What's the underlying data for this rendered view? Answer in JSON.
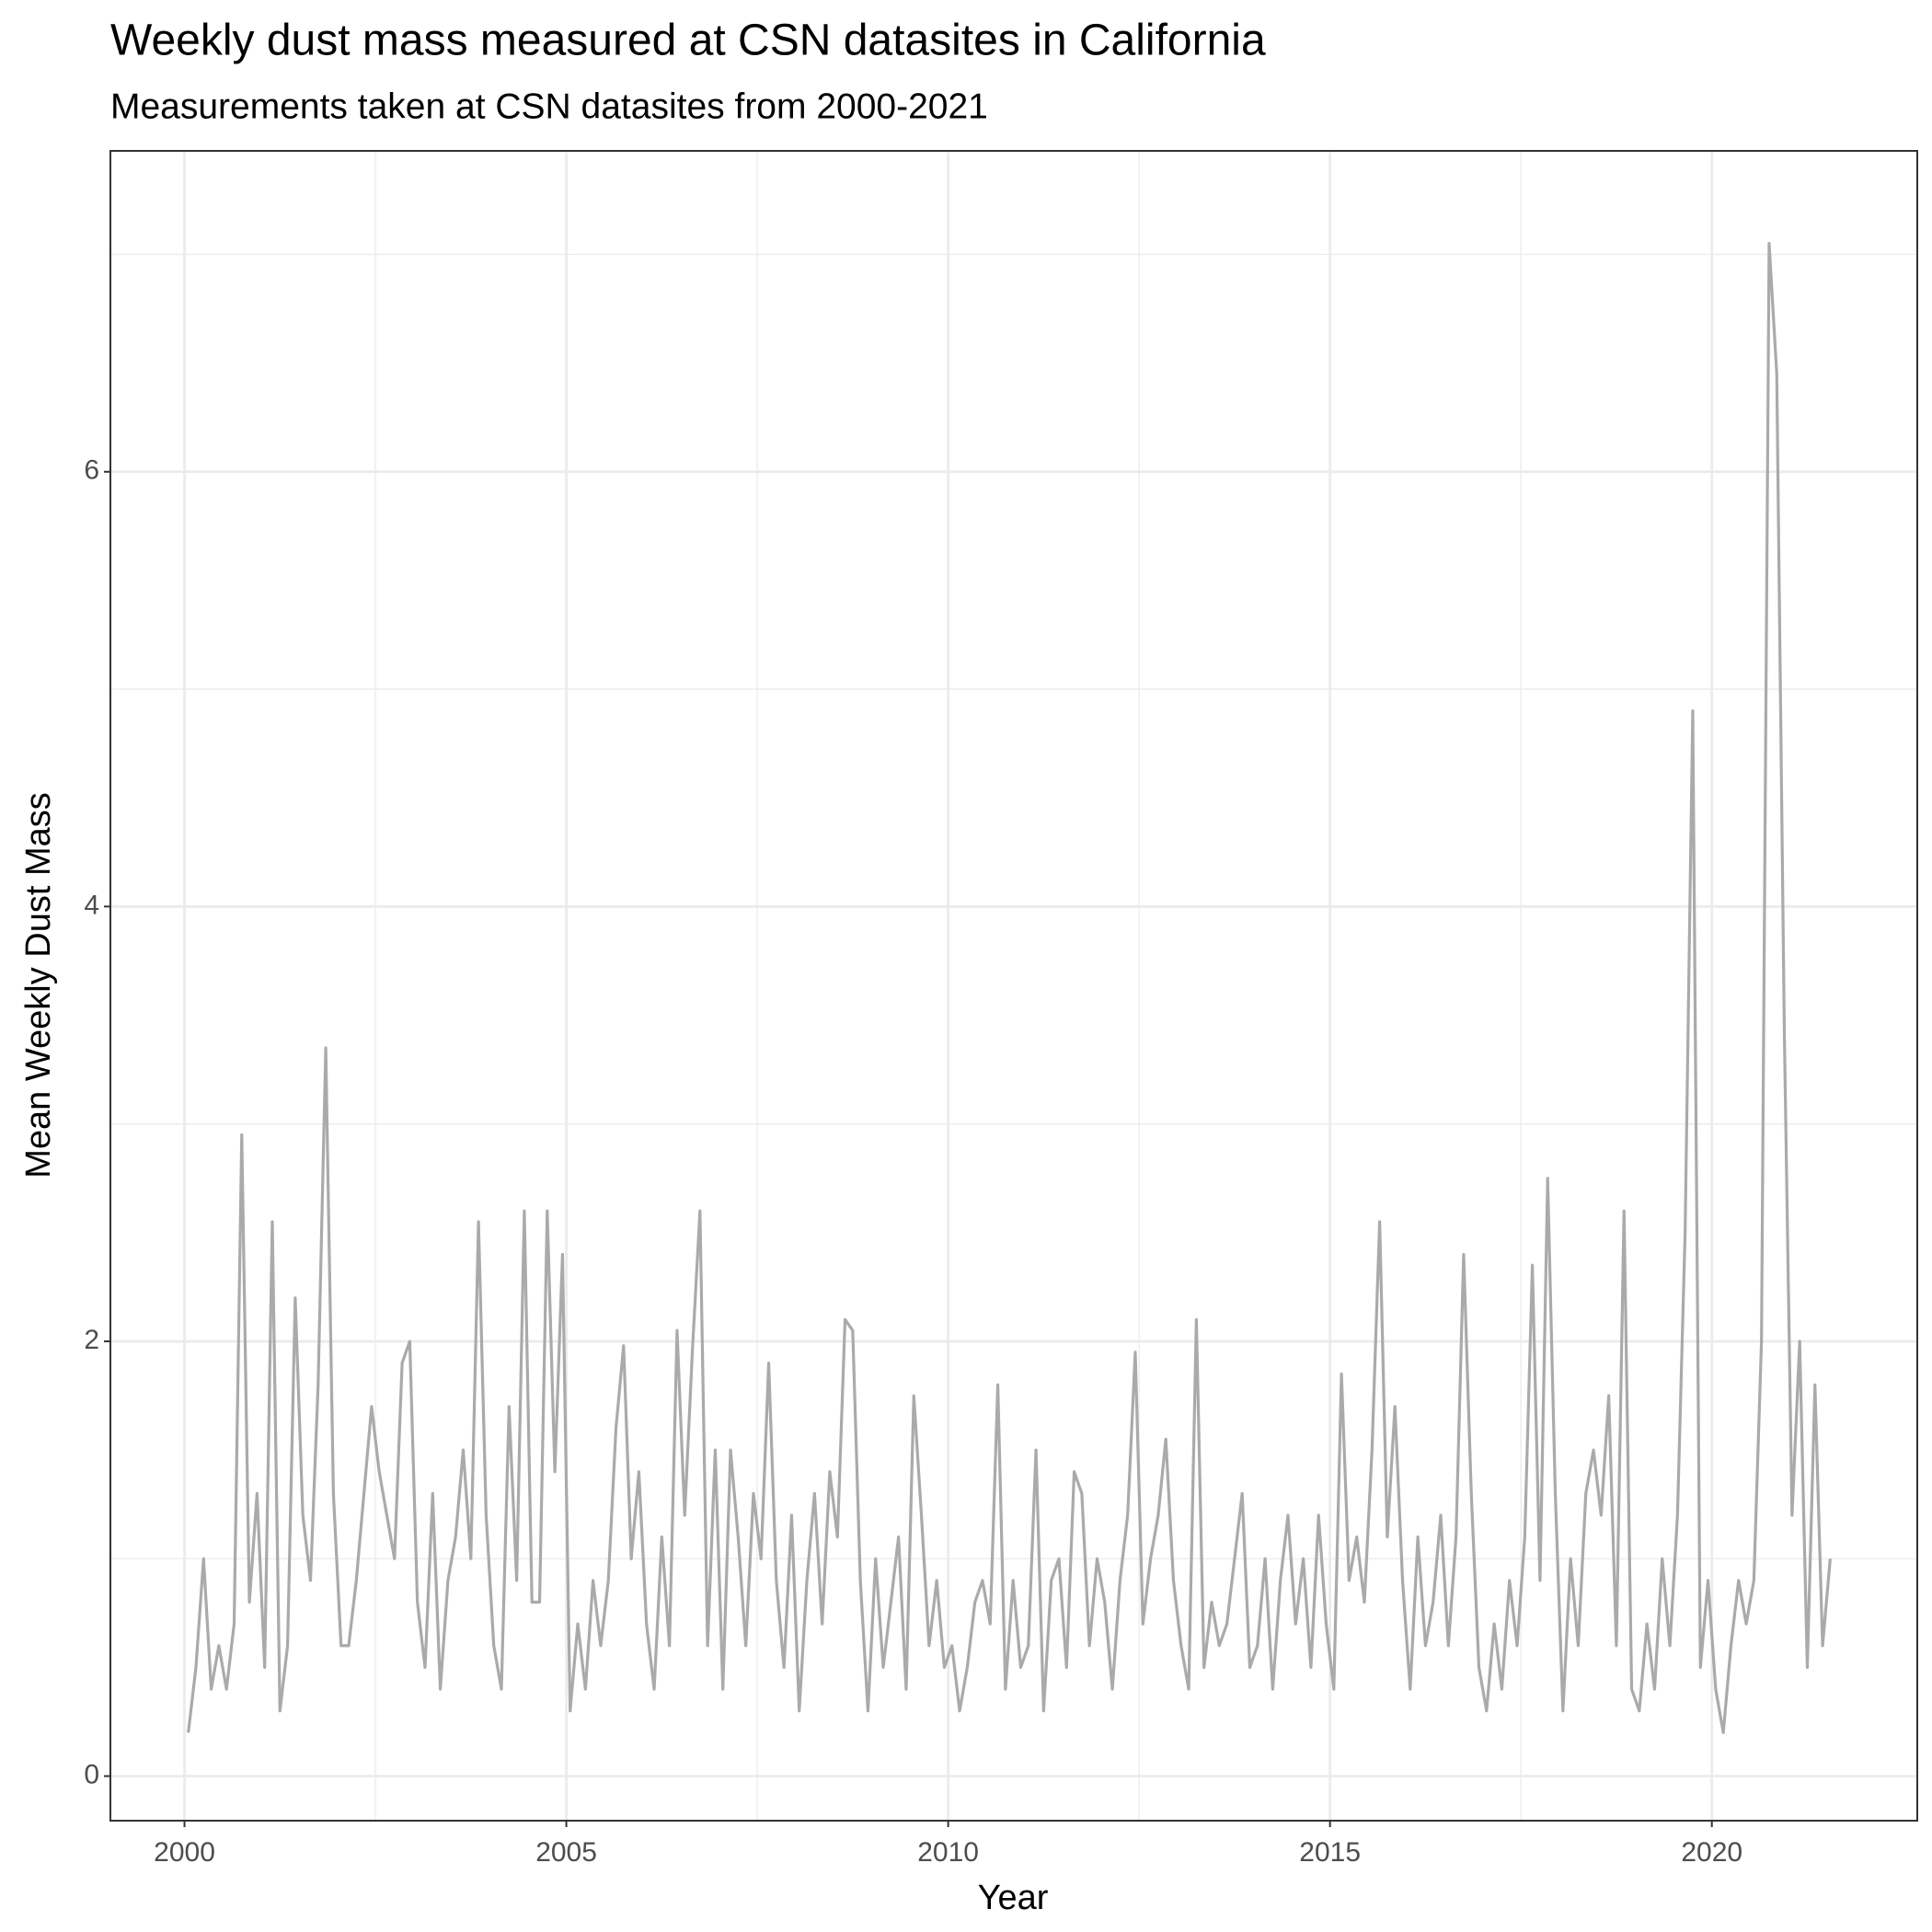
{
  "chart_data": {
    "type": "line",
    "title": "Weekly dust mass measured at CSN datasites in California",
    "subtitle": "Measurements taken at CSN datasites from 2000-2021",
    "x_label": "Year",
    "y_label": "Mean Weekly Dust Mass",
    "color": "#aaaaaa",
    "grid": true,
    "xlim": [
      1999.03,
      2022.69
    ],
    "xticks": [
      2000,
      2005,
      2010,
      2015,
      2020
    ],
    "x_minor_ticks": [
      2002.5,
      2007.5,
      2012.5,
      2017.5
    ],
    "ylim": [
      -0.205,
      7.476
    ],
    "yticks": [
      0,
      2,
      4,
      6
    ],
    "y_minor_ticks": [
      1,
      3,
      5,
      7
    ],
    "x": [
      2000.05,
      2000.15,
      2000.25,
      2000.35,
      2000.45,
      2000.55,
      2000.65,
      2000.75,
      2000.85,
      2000.95,
      2001.05,
      2001.15,
      2001.25,
      2001.35,
      2001.45,
      2001.55,
      2001.65,
      2001.75,
      2001.85,
      2001.95,
      2002.05,
      2002.15,
      2002.25,
      2002.35,
      2002.45,
      2002.55,
      2002.65,
      2002.75,
      2002.85,
      2002.95,
      2003.05,
      2003.15,
      2003.25,
      2003.35,
      2003.45,
      2003.55,
      2003.65,
      2003.75,
      2003.85,
      2003.95,
      2004.05,
      2004.15,
      2004.25,
      2004.35,
      2004.45,
      2004.55,
      2004.65,
      2004.75,
      2004.85,
      2004.95,
      2005.05,
      2005.15,
      2005.25,
      2005.35,
      2005.45,
      2005.55,
      2005.65,
      2005.75,
      2005.85,
      2005.95,
      2006.05,
      2006.15,
      2006.25,
      2006.35,
      2006.45,
      2006.55,
      2006.65,
      2006.75,
      2006.85,
      2006.95,
      2007.05,
      2007.15,
      2007.25,
      2007.35,
      2007.45,
      2007.55,
      2007.65,
      2007.75,
      2007.85,
      2007.95,
      2008.05,
      2008.15,
      2008.25,
      2008.35,
      2008.45,
      2008.55,
      2008.65,
      2008.75,
      2008.85,
      2008.95,
      2009.05,
      2009.15,
      2009.25,
      2009.35,
      2009.45,
      2009.55,
      2009.65,
      2009.75,
      2009.85,
      2009.95,
      2010.05,
      2010.15,
      2010.25,
      2010.35,
      2010.45,
      2010.55,
      2010.65,
      2010.75,
      2010.85,
      2010.95,
      2011.05,
      2011.15,
      2011.25,
      2011.35,
      2011.45,
      2011.55,
      2011.65,
      2011.75,
      2011.85,
      2011.95,
      2012.05,
      2012.15,
      2012.25,
      2012.35,
      2012.45,
      2012.55,
      2012.65,
      2012.75,
      2012.85,
      2012.95,
      2013.05,
      2013.15,
      2013.25,
      2013.35,
      2013.45,
      2013.55,
      2013.65,
      2013.75,
      2013.85,
      2013.95,
      2014.05,
      2014.15,
      2014.25,
      2014.35,
      2014.45,
      2014.55,
      2014.65,
      2014.75,
      2014.85,
      2014.95,
      2015.05,
      2015.15,
      2015.25,
      2015.35,
      2015.45,
      2015.55,
      2015.65,
      2015.75,
      2015.85,
      2015.95,
      2016.05,
      2016.15,
      2016.25,
      2016.35,
      2016.45,
      2016.55,
      2016.65,
      2016.75,
      2016.85,
      2016.95,
      2017.05,
      2017.15,
      2017.25,
      2017.35,
      2017.45,
      2017.55,
      2017.65,
      2017.75,
      2017.85,
      2017.95,
      2018.05,
      2018.15,
      2018.25,
      2018.35,
      2018.45,
      2018.55,
      2018.65,
      2018.75,
      2018.85,
      2018.95,
      2019.05,
      2019.15,
      2019.25,
      2019.35,
      2019.45,
      2019.55,
      2019.65,
      2019.75,
      2019.85,
      2019.95,
      2020.05,
      2020.15,
      2020.25,
      2020.35,
      2020.45,
      2020.55,
      2020.65,
      2020.75,
      2020.85,
      2020.95,
      2021.05,
      2021.15,
      2021.25,
      2021.35,
      2021.45,
      2021.55
    ],
    "values": [
      0.2,
      0.5,
      1.0,
      0.4,
      0.6,
      0.4,
      0.7,
      2.95,
      0.8,
      1.3,
      0.5,
      2.55,
      0.3,
      0.6,
      2.2,
      1.2,
      0.9,
      1.8,
      3.35,
      1.3,
      0.6,
      0.6,
      0.9,
      1.3,
      1.7,
      1.4,
      1.2,
      1.0,
      1.9,
      2.0,
      0.8,
      0.5,
      1.3,
      0.4,
      0.9,
      1.1,
      1.5,
      1.0,
      2.55,
      1.2,
      0.6,
      0.4,
      1.7,
      0.9,
      2.6,
      0.8,
      0.8,
      2.6,
      1.4,
      2.4,
      0.3,
      0.7,
      0.4,
      0.9,
      0.6,
      0.9,
      1.6,
      1.98,
      1.0,
      1.4,
      0.7,
      0.4,
      1.1,
      0.6,
      2.05,
      1.2,
      1.95,
      2.6,
      0.6,
      1.5,
      0.4,
      1.5,
      1.1,
      0.6,
      1.3,
      1.0,
      1.9,
      0.9,
      0.5,
      1.2,
      0.3,
      0.9,
      1.3,
      0.7,
      1.4,
      1.1,
      2.1,
      2.05,
      0.9,
      0.3,
      1.0,
      0.5,
      0.8,
      1.1,
      0.4,
      1.75,
      1.2,
      0.6,
      0.9,
      0.5,
      0.6,
      0.3,
      0.5,
      0.8,
      0.9,
      0.7,
      1.8,
      0.4,
      0.9,
      0.5,
      0.6,
      1.5,
      0.3,
      0.9,
      1.0,
      0.5,
      1.4,
      1.3,
      0.6,
      1.0,
      0.8,
      0.4,
      0.9,
      1.2,
      1.95,
      0.7,
      1.0,
      1.2,
      1.55,
      0.9,
      0.6,
      0.4,
      2.1,
      0.5,
      0.8,
      0.6,
      0.7,
      1.0,
      1.3,
      0.5,
      0.6,
      1.0,
      0.4,
      0.9,
      1.2,
      0.7,
      1.0,
      0.5,
      1.2,
      0.7,
      0.4,
      1.85,
      0.9,
      1.1,
      0.8,
      1.5,
      2.55,
      1.1,
      1.7,
      0.9,
      0.4,
      1.1,
      0.6,
      0.8,
      1.2,
      0.6,
      1.1,
      2.4,
      1.3,
      0.5,
      0.3,
      0.7,
      0.4,
      0.9,
      0.6,
      1.1,
      2.35,
      0.9,
      2.75,
      1.3,
      0.3,
      1.0,
      0.6,
      1.3,
      1.5,
      1.2,
      1.75,
      0.6,
      2.6,
      0.4,
      0.3,
      0.7,
      0.4,
      1.0,
      0.6,
      1.2,
      2.5,
      4.9,
      0.5,
      0.9,
      0.4,
      0.2,
      0.6,
      0.9,
      0.7,
      0.9,
      2.0,
      7.05,
      6.45,
      3.4,
      1.2,
      2.0,
      0.5,
      1.8,
      0.6,
      1.0
    ]
  }
}
